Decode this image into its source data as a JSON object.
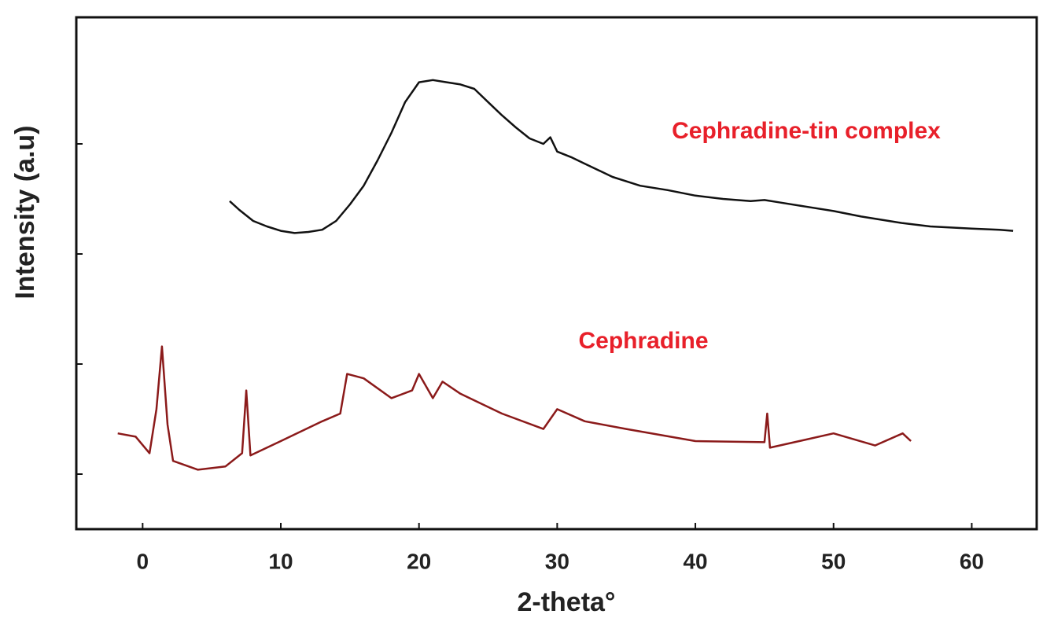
{
  "chart_data": {
    "type": "line",
    "x_label": "2-theta°",
    "y_label": "Intensity (a.u)",
    "xlim": [
      -4.8,
      64.7
    ],
    "xticks": [
      0,
      10,
      20,
      30,
      40,
      50,
      60
    ],
    "ylim": [
      -0.5,
      4.15
    ],
    "yticks": [
      0,
      1,
      2,
      3
    ],
    "series": [
      {
        "name": "Cephradine-tin complex",
        "color": "#111111",
        "x": [
          6.3,
          7,
          8,
          9,
          10,
          11,
          12,
          13,
          14,
          15,
          16,
          17,
          18,
          19,
          20,
          21,
          22,
          23,
          24,
          25,
          26,
          27,
          28,
          29,
          29.5,
          30,
          31,
          32,
          33,
          34,
          35,
          36,
          38,
          40,
          42,
          44,
          45,
          46,
          48,
          50,
          52,
          54,
          55,
          57,
          60,
          62,
          63
        ],
        "values": [
          2.48,
          2.4,
          2.3,
          2.25,
          2.21,
          2.19,
          2.2,
          2.22,
          2.3,
          2.45,
          2.62,
          2.85,
          3.1,
          3.38,
          3.56,
          3.58,
          3.56,
          3.54,
          3.5,
          3.38,
          3.26,
          3.15,
          3.05,
          3.0,
          3.06,
          2.93,
          2.88,
          2.82,
          2.76,
          2.7,
          2.66,
          2.62,
          2.58,
          2.53,
          2.5,
          2.48,
          2.49,
          2.47,
          2.43,
          2.39,
          2.34,
          2.3,
          2.28,
          2.25,
          2.23,
          2.22,
          2.21
        ]
      },
      {
        "name": "Cephradine",
        "color": "#8b1a1a",
        "x": [
          -1.8,
          -0.5,
          0.5,
          1.0,
          1.4,
          1.8,
          2.2,
          4,
          6,
          7.2,
          7.5,
          7.8,
          10,
          13,
          14.3,
          14.8,
          16,
          18,
          19.5,
          20,
          21,
          21.7,
          23,
          26,
          29,
          30,
          32,
          35,
          40,
          45,
          45.2,
          45.4,
          50,
          53,
          55,
          55.6
        ],
        "values": [
          0.37,
          0.34,
          0.19,
          0.59,
          1.16,
          0.45,
          0.12,
          0.04,
          0.07,
          0.19,
          0.76,
          0.17,
          0.3,
          0.48,
          0.55,
          0.91,
          0.87,
          0.69,
          0.76,
          0.91,
          0.69,
          0.84,
          0.73,
          0.55,
          0.41,
          0.59,
          0.48,
          0.41,
          0.3,
          0.29,
          0.55,
          0.24,
          0.37,
          0.26,
          0.37,
          0.3
        ]
      }
    ]
  }
}
